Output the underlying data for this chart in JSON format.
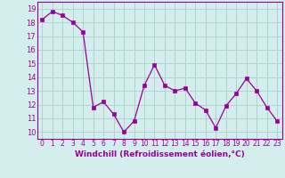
{
  "x": [
    0,
    1,
    2,
    3,
    4,
    5,
    6,
    7,
    8,
    9,
    10,
    11,
    12,
    13,
    14,
    15,
    16,
    17,
    18,
    19,
    20,
    21,
    22,
    23
  ],
  "y": [
    18.2,
    18.8,
    18.5,
    18.0,
    17.3,
    11.8,
    12.2,
    11.3,
    10.0,
    10.8,
    13.4,
    14.9,
    13.4,
    13.0,
    13.2,
    12.1,
    11.6,
    10.3,
    11.9,
    12.8,
    13.9,
    13.0,
    11.8,
    10.8
  ],
  "line_color": "#990099",
  "marker": "s",
  "marker_size": 2.5,
  "bg_color": "#d4eeed",
  "grid_color": "#aed4d0",
  "xlabel": "Windchill (Refroidissement éolien,°C)",
  "ylabel_ticks": [
    10,
    11,
    12,
    13,
    14,
    15,
    16,
    17,
    18,
    19
  ],
  "ylim": [
    9.5,
    19.5
  ],
  "xlim": [
    -0.5,
    23.5
  ],
  "tick_label_color": "#990099",
  "xlabel_color": "#990099"
}
